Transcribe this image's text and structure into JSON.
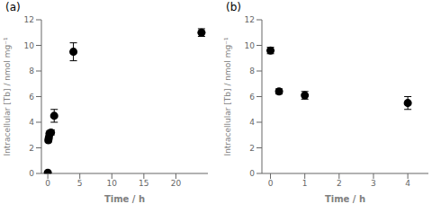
{
  "chart_data": [
    {
      "type": "scatter",
      "title": "(a)",
      "xlabel": "Time / h",
      "ylabel": "Intracellular [Tb] / nmol mg⁻¹",
      "x": [
        0,
        0.083,
        0.167,
        0.25,
        0.5,
        1.0,
        4.0,
        24.0
      ],
      "values": [
        0.05,
        2.6,
        2.8,
        3.1,
        3.2,
        4.5,
        9.5,
        11.0
      ],
      "yerr": [
        0.05,
        0.15,
        0.15,
        0.2,
        0.2,
        0.5,
        0.7,
        0.3
      ],
      "color": "black",
      "marker": "circle",
      "xlim": [
        -1,
        25
      ],
      "ylim": [
        0,
        12
      ],
      "xticks": [
        0,
        5,
        10,
        15,
        20
      ],
      "yticks": [
        0,
        2,
        4,
        6,
        8,
        10,
        12
      ]
    },
    {
      "type": "scatter",
      "title": "(b)",
      "xlabel": "Time / h",
      "ylabel": "Intracellular [Tb] / nmol mg⁻¹",
      "x": [
        0,
        0.25,
        1.0,
        4.0
      ],
      "values": [
        9.6,
        6.4,
        6.1,
        5.5
      ],
      "yerr": [
        0.25,
        0.2,
        0.3,
        0.5
      ],
      "color": "black",
      "marker": "circle",
      "xlim": [
        -0.25,
        4.6
      ],
      "ylim": [
        0,
        12
      ],
      "xticks": [
        0,
        1,
        2,
        3,
        4
      ],
      "yticks": [
        0,
        2,
        4,
        6,
        8,
        10,
        12
      ]
    }
  ]
}
